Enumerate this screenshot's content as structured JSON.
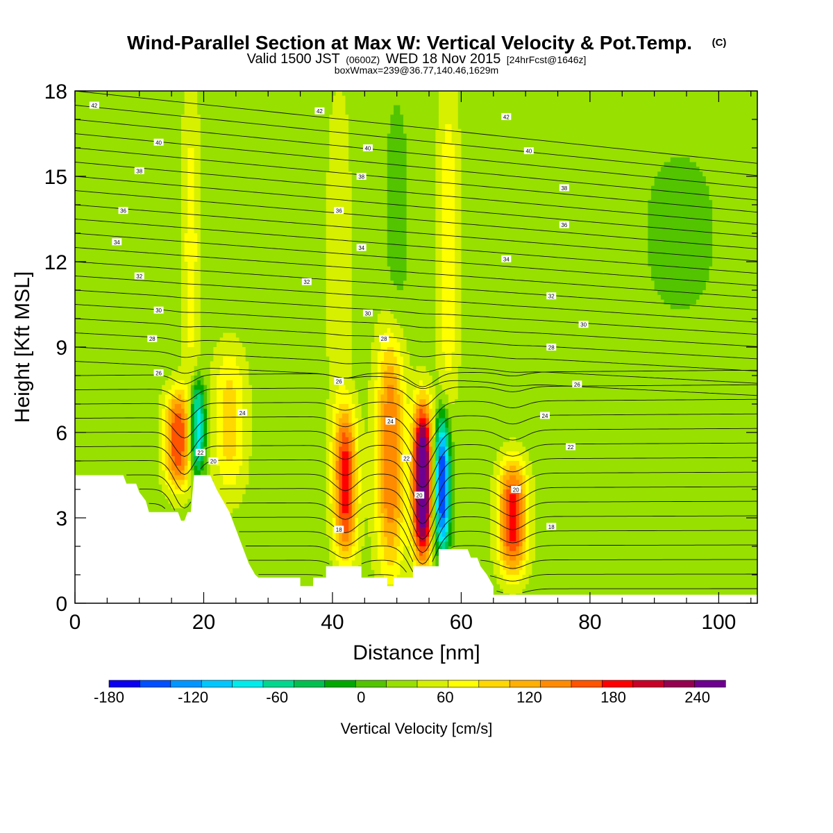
{
  "chart_data": {
    "type": "heatmap",
    "title": "Wind-Parallel Section at Max W: Vertical Velocity & Pot.Temp.",
    "title_mark": "(C)",
    "subtitle": {
      "prefix": "Valid 1500 JST",
      "utc": "(0600Z)",
      "date": "WED 18 Nov 2015",
      "forecast": "[24hrFcst@1646z]"
    },
    "info_line": "boxWmax=239@36.77,140.46,1629m",
    "xlabel": "Distance [nm]",
    "ylabel": "Height [Kft MSL]",
    "xlim": [
      0,
      106
    ],
    "ylim": [
      0,
      18
    ],
    "x_ticks": [
      0,
      20,
      40,
      60,
      80,
      100
    ],
    "y_ticks": [
      0,
      3,
      6,
      9,
      12,
      15,
      18
    ],
    "colorbar": {
      "label": "Vertical Velocity [cm/s]",
      "levels": [
        -180,
        -160,
        -140,
        -120,
        -100,
        -80,
        -60,
        -40,
        -20,
        0,
        20,
        40,
        60,
        80,
        100,
        120,
        140,
        160,
        180,
        200,
        220,
        240,
        260
      ],
      "tick_labels": [
        "-180",
        "-120",
        "-60",
        "0",
        "60",
        "120",
        "180",
        "240"
      ],
      "colors": [
        "#0b00f0",
        "#0050ff",
        "#0096ff",
        "#00c8ff",
        "#00ecec",
        "#00d890",
        "#00c050",
        "#00a800",
        "#52c400",
        "#98e000",
        "#d6f000",
        "#ffff00",
        "#ffd800",
        "#ffb000",
        "#ff8c00",
        "#ff5400",
        "#ff0000",
        "#c80028",
        "#960050",
        "#6e0090"
      ]
    },
    "background_value": 10,
    "cells": [
      {
        "x": 16,
        "z0": 4.0,
        "z1": 7.5,
        "w": 130,
        "halfwidth": 2.0
      },
      {
        "x": 19,
        "z0": 4.5,
        "z1": 7.8,
        "w": -120,
        "halfwidth": 1.2
      },
      {
        "x": 24,
        "z0": 3.8,
        "z1": 9.0,
        "w": 60,
        "halfwidth": 2.5
      },
      {
        "x": 42,
        "z0": 1.5,
        "z1": 6.8,
        "w": 140,
        "halfwidth": 1.8
      },
      {
        "x": 49,
        "z0": 1.0,
        "z1": 9.5,
        "w": 110,
        "halfwidth": 2.2
      },
      {
        "x": 54,
        "z0": 1.5,
        "z1": 7.0,
        "w": 239,
        "halfwidth": 1.5
      },
      {
        "x": 57,
        "z0": 1.8,
        "z1": 6.5,
        "w": -180,
        "halfwidth": 1.2
      },
      {
        "x": 68,
        "z0": 1.0,
        "z1": 5.0,
        "w": 140,
        "halfwidth": 2.2
      },
      {
        "x": 58,
        "z0": 7.0,
        "z1": 18.0,
        "w": 50,
        "halfwidth": 1.6
      },
      {
        "x": 18,
        "z0": 7.0,
        "z1": 18.0,
        "w": 40,
        "halfwidth": 1.4
      },
      {
        "x": 41,
        "z0": 6.0,
        "z1": 18.0,
        "w": 30,
        "halfwidth": 1.8
      },
      {
        "x": 94,
        "z0": 10.0,
        "z1": 16.0,
        "w": -20,
        "halfwidth": 6.0
      },
      {
        "x": 50,
        "z0": 9.0,
        "z1": 18.0,
        "w": -20,
        "halfwidth": 2.0
      }
    ],
    "terrain": [
      [
        0,
        4.5
      ],
      [
        7.5,
        4.5
      ],
      [
        8,
        4.2
      ],
      [
        9.5,
        4.2
      ],
      [
        10,
        3.9
      ],
      [
        11,
        3.6
      ],
      [
        11.5,
        3.2
      ],
      [
        16,
        3.2
      ],
      [
        16.5,
        2.9
      ],
      [
        17,
        2.9
      ],
      [
        17.5,
        3.2
      ],
      [
        18,
        3.2
      ],
      [
        18.5,
        4.5
      ],
      [
        21,
        4.5
      ],
      [
        22,
        4.0
      ],
      [
        23,
        3.6
      ],
      [
        24,
        3.2
      ],
      [
        24.5,
        2.9
      ],
      [
        25,
        2.6
      ],
      [
        25.5,
        2.3
      ],
      [
        26,
        2.0
      ],
      [
        26.5,
        1.7
      ],
      [
        27,
        1.4
      ],
      [
        28,
        1.0
      ],
      [
        28.5,
        0.9
      ],
      [
        35,
        0.9
      ],
      [
        35,
        0.6
      ],
      [
        37,
        0.6
      ],
      [
        37,
        0.9
      ],
      [
        39,
        0.9
      ],
      [
        39,
        1.3
      ],
      [
        44.5,
        1.3
      ],
      [
        44.5,
        0.9
      ],
      [
        48.5,
        0.9
      ],
      [
        48.5,
        0.6
      ],
      [
        49.5,
        0.6
      ],
      [
        49.5,
        0.9
      ],
      [
        52.5,
        0.9
      ],
      [
        52.5,
        1.3
      ],
      [
        56.5,
        1.3
      ],
      [
        56.5,
        1.9
      ],
      [
        61,
        1.9
      ],
      [
        61.5,
        1.6
      ],
      [
        62.5,
        1.6
      ],
      [
        63,
        1.3
      ],
      [
        64,
        1.0
      ],
      [
        65,
        0.6
      ],
      [
        65,
        0.3
      ],
      [
        106,
        0.3
      ]
    ],
    "theta_levels": [
      18,
      20,
      22,
      24,
      26,
      28,
      30,
      32,
      34,
      36,
      38,
      40,
      42
    ],
    "contour_labels": [
      {
        "text": "42",
        "x": 3,
        "z": 17.5
      },
      {
        "text": "42",
        "x": 38,
        "z": 17.3
      },
      {
        "text": "42",
        "x": 67,
        "z": 17.1
      },
      {
        "text": "40",
        "x": 13,
        "z": 16.2
      },
      {
        "text": "40",
        "x": 45.5,
        "z": 16.0
      },
      {
        "text": "40",
        "x": 70.5,
        "z": 15.9
      },
      {
        "text": "38",
        "x": 10,
        "z": 15.2
      },
      {
        "text": "38",
        "x": 44.5,
        "z": 15.0
      },
      {
        "text": "38",
        "x": 76,
        "z": 14.6
      },
      {
        "text": "36",
        "x": 7.5,
        "z": 13.8
      },
      {
        "text": "36",
        "x": 41,
        "z": 13.8
      },
      {
        "text": "36",
        "x": 76,
        "z": 13.3
      },
      {
        "text": "34",
        "x": 6.5,
        "z": 12.7
      },
      {
        "text": "34",
        "x": 44.5,
        "z": 12.5
      },
      {
        "text": "34",
        "x": 67,
        "z": 12.1
      },
      {
        "text": "32",
        "x": 10,
        "z": 11.5
      },
      {
        "text": "32",
        "x": 36,
        "z": 11.3
      },
      {
        "text": "32",
        "x": 74,
        "z": 10.8
      },
      {
        "text": "30",
        "x": 13,
        "z": 10.3
      },
      {
        "text": "30",
        "x": 45.5,
        "z": 10.2
      },
      {
        "text": "30",
        "x": 79,
        "z": 9.8
      },
      {
        "text": "28",
        "x": 12,
        "z": 9.3
      },
      {
        "text": "28",
        "x": 48,
        "z": 9.3
      },
      {
        "text": "28",
        "x": 74,
        "z": 9.0
      },
      {
        "text": "26",
        "x": 13,
        "z": 8.1
      },
      {
        "text": "26",
        "x": 41,
        "z": 7.8
      },
      {
        "text": "26",
        "x": 78,
        "z": 7.7
      },
      {
        "text": "24",
        "x": 26,
        "z": 6.7
      },
      {
        "text": "24",
        "x": 49,
        "z": 6.4
      },
      {
        "text": "24",
        "x": 73,
        "z": 6.6
      },
      {
        "text": "22",
        "x": 51.5,
        "z": 5.1
      },
      {
        "text": "22",
        "x": 77,
        "z": 5.5
      },
      {
        "text": "22",
        "x": 19.5,
        "z": 5.3
      },
      {
        "text": "20",
        "x": 21.5,
        "z": 5.0
      },
      {
        "text": "20",
        "x": 53.5,
        "z": 3.8
      },
      {
        "text": "20",
        "x": 68.5,
        "z": 4.0
      },
      {
        "text": "18",
        "x": 41,
        "z": 2.6
      },
      {
        "text": "18",
        "x": 74,
        "z": 2.7
      }
    ]
  }
}
